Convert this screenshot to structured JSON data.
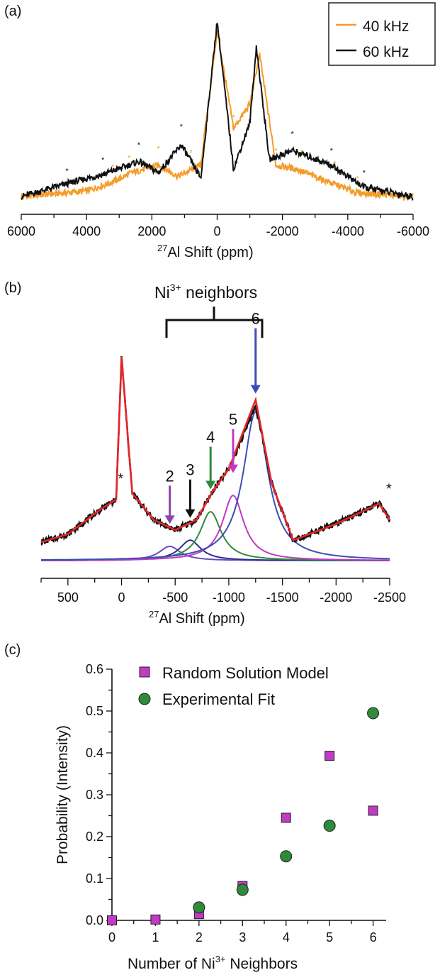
{
  "panels": {
    "a": {
      "label": "(a)",
      "xlabel_sup": "27",
      "xlabel_main": "Al Shift (ppm)",
      "x_ticks": [
        "6000",
        "4000",
        "2000",
        "0",
        "-2000",
        "-4000",
        "-6000"
      ],
      "legend": [
        {
          "label": "40 kHz",
          "color": "#f39c2a"
        },
        {
          "label": "60 kHz",
          "color": "#111111"
        }
      ],
      "sideband_marker": "*"
    },
    "b": {
      "label": "(b)",
      "bracket_label_main": "Ni",
      "bracket_label_sup": "3+",
      "bracket_label_rest": " neighbors",
      "xlabel_sup": "27",
      "xlabel_main": "Al Shift (ppm)",
      "x_ticks": [
        "500",
        "0",
        "-500",
        "-1000",
        "-1500",
        "-2000",
        "-2500"
      ],
      "star_marker": "*",
      "arrows": [
        {
          "label": "2",
          "color": "#8e44ad"
        },
        {
          "label": "3",
          "color": "#111111"
        },
        {
          "label": "4",
          "color": "#2e8b3a"
        },
        {
          "label": "5",
          "color": "#c23ac0"
        },
        {
          "label": "6",
          "color": "#3d4db7"
        }
      ],
      "colors": {
        "fit": "#e3262a",
        "data": "#111111",
        "peak2": "#6a4cc0",
        "peak3": "#2b2f8f",
        "peak4": "#2e8b3a",
        "peak5": "#c23ac0",
        "peak6": "#3d4db7"
      }
    },
    "c": {
      "label": "(c)",
      "xlabel_main": "Number of Ni",
      "xlabel_sup": "3+",
      "xlabel_rest": " Neighbors",
      "ylabel": "Probability (Intensity)",
      "x_ticks": [
        "0",
        "1",
        "2",
        "3",
        "4",
        "5",
        "6"
      ],
      "y_ticks": [
        "0.0",
        "0.1",
        "0.2",
        "0.3",
        "0.4",
        "0.5",
        "0.6"
      ]
    }
  },
  "chart_data": [
    {
      "panel": "a",
      "type": "line",
      "xlabel": "27Al Shift (ppm)",
      "xlim": [
        6000,
        -6000
      ],
      "series": [
        {
          "name": "40 kHz",
          "x": [
            6000,
            4000,
            3200,
            2600,
            1800,
            1200,
            500,
            0,
            -500,
            -1000,
            -1300,
            -1800,
            -2400,
            -3400,
            -4300,
            -6000
          ],
          "y": [
            0.05,
            0.08,
            0.13,
            0.18,
            0.22,
            0.16,
            0.22,
            0.95,
            0.42,
            0.55,
            0.82,
            0.22,
            0.2,
            0.13,
            0.07,
            0.05
          ]
        },
        {
          "name": "60 kHz",
          "x": [
            6000,
            4600,
            3500,
            2400,
            1800,
            1100,
            500,
            0,
            -500,
            -1000,
            -1200,
            -1600,
            -2300,
            -3500,
            -4500,
            -6000
          ],
          "y": [
            0.05,
            0.12,
            0.17,
            0.24,
            0.18,
            0.33,
            0.15,
            1.0,
            0.2,
            0.45,
            0.86,
            0.25,
            0.3,
            0.22,
            0.1,
            0.05
          ]
        }
      ]
    },
    {
      "panel": "b",
      "type": "line",
      "xlabel": "27Al Shift (ppm)",
      "xlim": [
        750,
        -2500
      ],
      "series": [
        {
          "x": [
            750,
            500,
            200,
            50,
            0,
            -100,
            -300,
            -500,
            -700,
            -850,
            -1000,
            -1250,
            -1400,
            -1600,
            -2000,
            -2400,
            -2500
          ],
          "y": [
            0.09,
            0.13,
            0.25,
            0.3,
            1.0,
            0.33,
            0.2,
            0.15,
            0.2,
            0.34,
            0.45,
            0.76,
            0.38,
            0.1,
            0.18,
            0.28,
            0.2
          ]
        },
        {
          "x": [
            750,
            500,
            200,
            50,
            0,
            -100,
            -300,
            -500,
            -700,
            -850,
            -1000,
            -1250,
            -1400,
            -1600,
            -2000,
            -2400,
            -2500
          ],
          "y": [
            0.09,
            0.13,
            0.25,
            0.3,
            1.0,
            0.33,
            0.2,
            0.15,
            0.2,
            0.34,
            0.45,
            0.79,
            0.38,
            0.1,
            0.18,
            0.28,
            0.2
          ]
        }
      ],
      "components": [
        {
          "neighbors": 2,
          "center": -450,
          "height": 0.07,
          "width": 120
        },
        {
          "neighbors": 3,
          "center": -640,
          "height": 0.1,
          "width": 120
        },
        {
          "neighbors": 4,
          "center": -830,
          "height": 0.24,
          "width": 120
        },
        {
          "neighbors": 5,
          "center": -1040,
          "height": 0.32,
          "width": 120
        },
        {
          "neighbors": 6,
          "center": -1250,
          "height": 0.73,
          "width": 140
        }
      ]
    },
    {
      "panel": "c",
      "type": "scatter",
      "xlabel": "Number of Ni3+ Neighbors",
      "ylabel": "Probability (Intensity)",
      "xlim": [
        0,
        6.3
      ],
      "ylim": [
        0,
        0.6
      ],
      "series": [
        {
          "name": "Random Solution Model",
          "marker": "square",
          "color": "#c03ac6",
          "x": [
            0,
            1,
            2,
            3,
            4,
            5,
            6
          ],
          "y": [
            0.0,
            0.002,
            0.015,
            0.082,
            0.245,
            0.393,
            0.262
          ]
        },
        {
          "name": "Experimental Fit",
          "marker": "circle",
          "color": "#2e8b3a",
          "x": [
            2,
            3,
            4,
            5,
            6
          ],
          "y": [
            0.031,
            0.073,
            0.153,
            0.226,
            0.495
          ]
        }
      ]
    }
  ]
}
